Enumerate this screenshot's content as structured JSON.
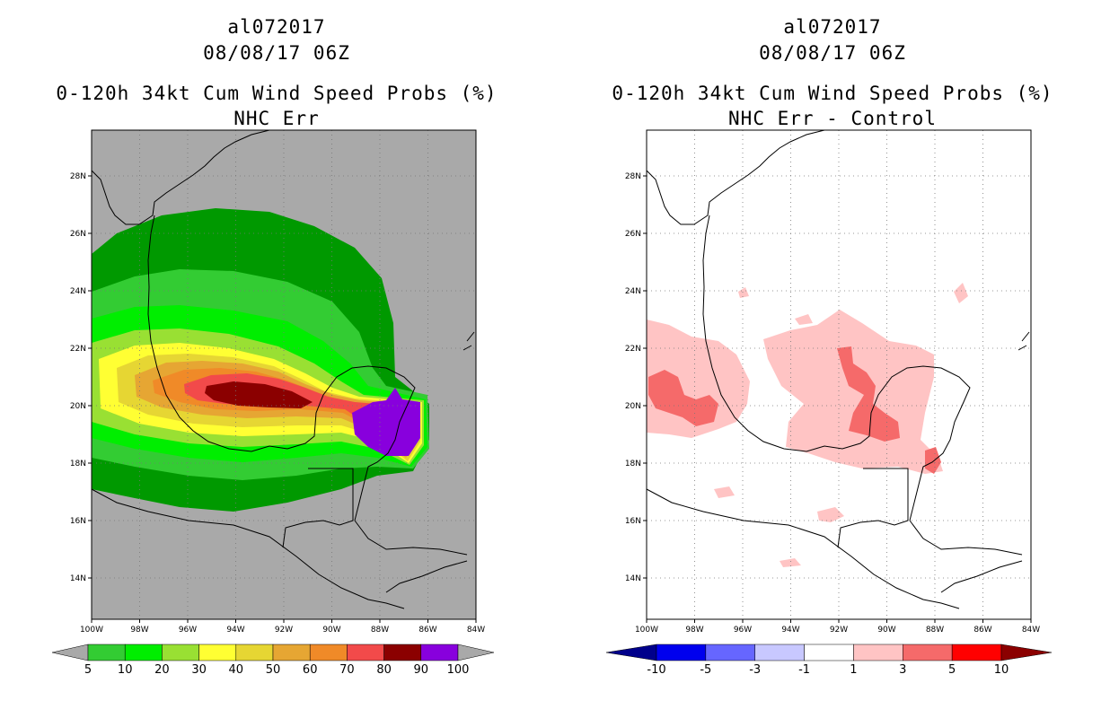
{
  "left": {
    "storm_id": "al072017",
    "datetime": "08/08/17 06Z",
    "product": "0-120h 34kt Cum Wind Speed Probs (%)",
    "subtitle": "NHC Err",
    "colorbar": {
      "labels": [
        "5",
        "10",
        "20",
        "30",
        "40",
        "50",
        "60",
        "70",
        "80",
        "90",
        "100"
      ],
      "colors": [
        "#009900",
        "#33cc33",
        "#00ee00",
        "#99e033",
        "#ffff33",
        "#e6d633",
        "#e6a633",
        "#f08a28",
        "#f24a4a",
        "#8b0000",
        "#8800dd"
      ]
    },
    "background": "#a9a9a9"
  },
  "right": {
    "storm_id": "al072017",
    "datetime": "08/08/17 06Z",
    "product": "0-120h 34kt Cum Wind Speed Probs (%)",
    "subtitle": "NHC Err - Control",
    "colorbar": {
      "labels": [
        "-10",
        "-5",
        "-3",
        "-1",
        "1",
        "3",
        "5",
        "10"
      ],
      "colors": [
        "#00008b",
        "#0000ee",
        "#6666ff",
        "#c8c8ff",
        "#ffffff",
        "#ffc4c4",
        "#f56a6a",
        "#ff0000",
        "#8b0000"
      ]
    },
    "background": "#ffffff"
  },
  "axes": {
    "lon_labels": [
      "100W",
      "98W",
      "96W",
      "94W",
      "92W",
      "90W",
      "88W",
      "86W",
      "84W"
    ],
    "lat_labels": [
      "14N",
      "16N",
      "18N",
      "20N",
      "22N",
      "24N",
      "26N",
      "28N"
    ]
  }
}
